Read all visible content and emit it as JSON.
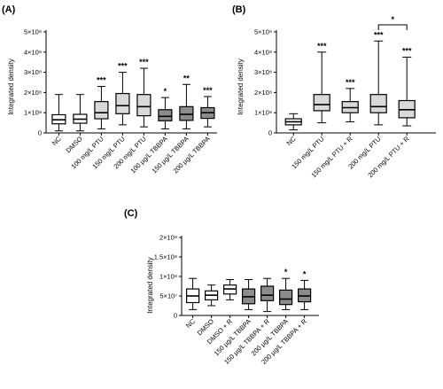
{
  "chart_data": [
    {
      "panel": "(A)",
      "type": "boxplot",
      "ylabel": "Integrated density",
      "ylim": [
        0,
        500000000
      ],
      "yticks": [
        {
          "v": 0,
          "label": "0"
        },
        {
          "v": 100000000,
          "label": "1×10⁸"
        },
        {
          "v": 200000000,
          "label": "2×10⁸"
        },
        {
          "v": 300000000,
          "label": "3×10⁸"
        },
        {
          "v": 400000000,
          "label": "4×10⁸"
        },
        {
          "v": 500000000,
          "label": "5×10⁸"
        }
      ],
      "categories": [
        "NC",
        "DMSO",
        "100 mg/L PTU",
        "150 mg/L PTU",
        "200 mg/L PTU",
        "100 µg/L TBBPA",
        "150 µg/L TBBPA",
        "200 µg/L TBBPA"
      ],
      "boxes": [
        {
          "min": 10000000,
          "q1": 45000000,
          "median": 65000000,
          "q3": 90000000,
          "max": 190000000,
          "fill": "#ffffff",
          "sig": ""
        },
        {
          "min": 10000000,
          "q1": 48000000,
          "median": 68000000,
          "q3": 92000000,
          "max": 190000000,
          "fill": "#ffffff",
          "sig": ""
        },
        {
          "min": 20000000,
          "q1": 70000000,
          "median": 100000000,
          "q3": 155000000,
          "max": 230000000,
          "fill": "#d9d9d9",
          "sig": "***"
        },
        {
          "min": 40000000,
          "q1": 95000000,
          "median": 135000000,
          "q3": 195000000,
          "max": 300000000,
          "fill": "#d9d9d9",
          "sig": "***"
        },
        {
          "min": 30000000,
          "q1": 85000000,
          "median": 130000000,
          "q3": 190000000,
          "max": 320000000,
          "fill": "#d9d9d9",
          "sig": "***"
        },
        {
          "min": 20000000,
          "q1": 60000000,
          "median": 82000000,
          "q3": 115000000,
          "max": 175000000,
          "fill": "#8c8c8c",
          "sig": "*"
        },
        {
          "min": 20000000,
          "q1": 62000000,
          "median": 92000000,
          "q3": 130000000,
          "max": 240000000,
          "fill": "#8c8c8c",
          "sig": "**"
        },
        {
          "min": 30000000,
          "q1": 72000000,
          "median": 100000000,
          "q3": 125000000,
          "max": 180000000,
          "fill": "#8c8c8c",
          "sig": "***"
        }
      ]
    },
    {
      "panel": "(B)",
      "type": "boxplot",
      "ylabel": "Integrated density",
      "ylim": [
        0,
        500000000
      ],
      "yticks": [
        {
          "v": 0,
          "label": "0"
        },
        {
          "v": 100000000,
          "label": "1×10⁸"
        },
        {
          "v": 200000000,
          "label": "2×10⁸"
        },
        {
          "v": 300000000,
          "label": "3×10⁸"
        },
        {
          "v": 400000000,
          "label": "4×10⁸"
        },
        {
          "v": 500000000,
          "label": "5×10⁸"
        }
      ],
      "categories": [
        "NC",
        "150 mg/L PTU",
        "150 mg/L PTU + R",
        "200 mg/L PTU",
        "200 mg/L PTU + R"
      ],
      "boxes": [
        {
          "min": 15000000,
          "q1": 40000000,
          "median": 55000000,
          "q3": 70000000,
          "max": 95000000,
          "fill": "#ffffff",
          "sig": ""
        },
        {
          "min": 50000000,
          "q1": 110000000,
          "median": 140000000,
          "q3": 190000000,
          "max": 400000000,
          "fill": "#d9d9d9",
          "sig": "***"
        },
        {
          "min": 55000000,
          "q1": 100000000,
          "median": 125000000,
          "q3": 155000000,
          "max": 220000000,
          "fill": "#d9d9d9",
          "sig": "***"
        },
        {
          "min": 40000000,
          "q1": 100000000,
          "median": 130000000,
          "q3": 190000000,
          "max": 455000000,
          "fill": "#d9d9d9",
          "sig": "***"
        },
        {
          "min": 35000000,
          "q1": 75000000,
          "median": 115000000,
          "q3": 160000000,
          "max": 375000000,
          "fill": "#d9d9d9",
          "sig": "***"
        }
      ],
      "bracket": {
        "from": 3,
        "to": 4,
        "label": "*"
      }
    },
    {
      "panel": "(C)",
      "type": "boxplot",
      "ylabel": "Integrated density",
      "ylim": [
        0,
        200000000
      ],
      "yticks": [
        {
          "v": 0,
          "label": "0"
        },
        {
          "v": 50000000,
          "label": "5×10⁷"
        },
        {
          "v": 100000000,
          "label": "1×10⁸"
        },
        {
          "v": 150000000,
          "label": "1.5×10⁸"
        },
        {
          "v": 200000000,
          "label": "2×10⁸"
        }
      ],
      "categories": [
        "NC",
        "DMSO",
        "DMSO + R",
        "150 µg/L TBBPA",
        "150 µg/L TBBPA + R",
        "200 µg/L TBBPA",
        "200 µg/L TBBPA + R"
      ],
      "boxes": [
        {
          "min": 15000000,
          "q1": 33000000,
          "median": 50000000,
          "q3": 68000000,
          "max": 95000000,
          "fill": "#ffffff",
          "sig": ""
        },
        {
          "min": 25000000,
          "q1": 40000000,
          "median": 52000000,
          "q3": 63000000,
          "max": 78000000,
          "fill": "#ffffff",
          "sig": ""
        },
        {
          "min": 40000000,
          "q1": 55000000,
          "median": 68000000,
          "q3": 78000000,
          "max": 92000000,
          "fill": "#ffffff",
          "sig": ""
        },
        {
          "min": 15000000,
          "q1": 30000000,
          "median": 48000000,
          "q3": 68000000,
          "max": 92000000,
          "fill": "#8c8c8c",
          "sig": ""
        },
        {
          "min": 10000000,
          "q1": 38000000,
          "median": 52000000,
          "q3": 75000000,
          "max": 95000000,
          "fill": "#8c8c8c",
          "sig": ""
        },
        {
          "min": 15000000,
          "q1": 28000000,
          "median": 42000000,
          "q3": 65000000,
          "max": 95000000,
          "fill": "#8c8c8c",
          "sig": "*"
        },
        {
          "min": 15000000,
          "q1": 35000000,
          "median": 50000000,
          "q3": 68000000,
          "max": 90000000,
          "fill": "#8c8c8c",
          "sig": "*"
        }
      ]
    }
  ]
}
